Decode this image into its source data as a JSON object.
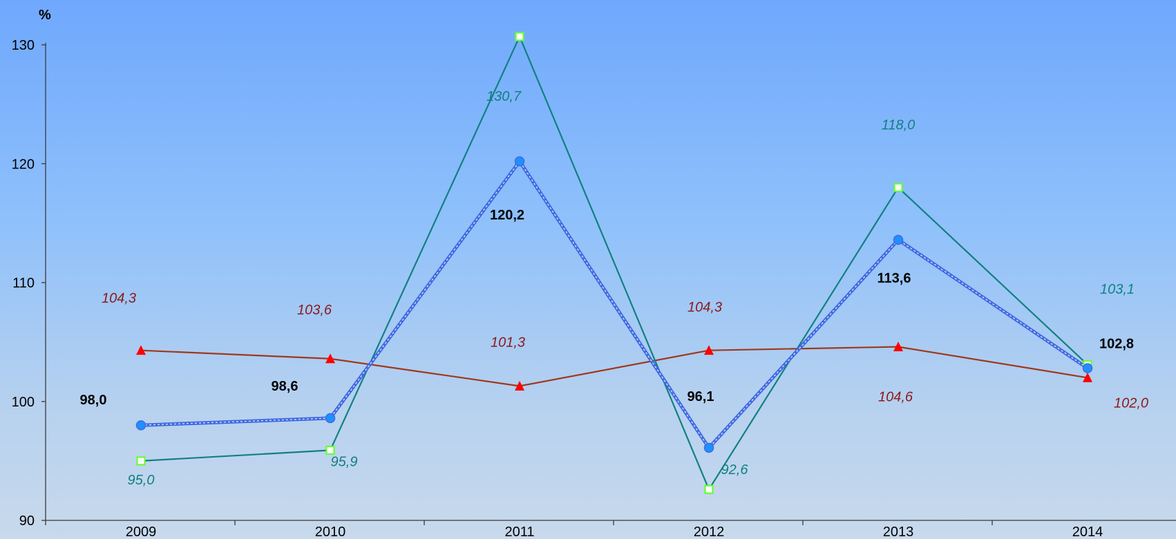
{
  "chart_data": {
    "type": "line",
    "title": "",
    "xlabel": "",
    "ylabel": "%",
    "ylim": [
      90,
      130
    ],
    "yticks": [
      "90",
      "100",
      "110",
      "120",
      "130"
    ],
    "categories": [
      "2009",
      "2010",
      "2011",
      "2012",
      "2013",
      "2014"
    ],
    "grid": false,
    "legend": "none",
    "series": [
      {
        "values": [
          98.0,
          98.6,
          120.2,
          96.1,
          113.6,
          102.8
        ],
        "labels": [
          "98,0",
          "98,6",
          "120,2",
          "96,1",
          "113,6",
          "102,8"
        ],
        "color": "#4169e1",
        "marker": "circle",
        "marker_color": "#1e90ff",
        "label_style": "bold-black"
      },
      {
        "values": [
          95.0,
          95.9,
          130.7,
          92.6,
          118.0,
          103.1
        ],
        "labels": [
          "95,0",
          "95,9",
          "130,7",
          "92,6",
          "118,0",
          "103,1"
        ],
        "color": "#118080",
        "marker": "square",
        "marker_color": "#66ff33",
        "label_style": "italic-teal"
      },
      {
        "values": [
          104.3,
          103.6,
          101.3,
          104.3,
          104.6,
          102.0
        ],
        "labels": [
          "104,3",
          "103,6",
          "101,3",
          "104,3",
          "104,6",
          "102,0"
        ],
        "color": "#a0371a",
        "marker": "triangle",
        "marker_color": "#ff0000",
        "label_style": "italic-red"
      }
    ]
  }
}
